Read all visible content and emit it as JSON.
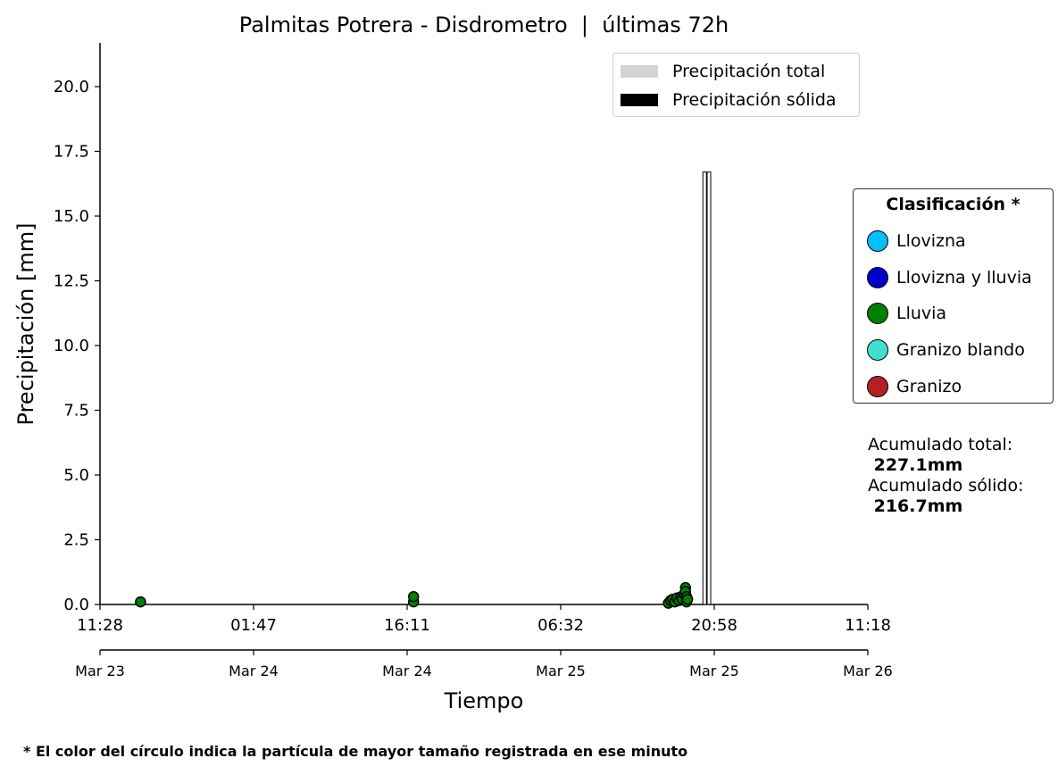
{
  "chart_data": {
    "type": "bar",
    "title": "Palmitas Potrera - Disdrometro  |  últimas 72h",
    "xlabel": "Tiempo",
    "ylabel": "Precipitación [mm]",
    "ylim": [
      0,
      21.7
    ],
    "xlim_hours": [
      0,
      72
    ],
    "grid": false,
    "yticks": [
      "0.0",
      "2.5",
      "5.0",
      "7.5",
      "10.0",
      "12.5",
      "15.0",
      "17.5",
      "20.0"
    ],
    "xticks_time": [
      "11:28",
      "01:47",
      "16:11",
      "06:32",
      "20:58",
      "11:18"
    ],
    "xticks_date": [
      "Mar 23",
      "Mar 24",
      "Mar 24",
      "Mar 25",
      "Mar 25",
      "Mar 26"
    ],
    "legend_placement": "top-right",
    "series": [
      {
        "name": "Precipitación total",
        "color": "#d3d3d3",
        "bars": [
          {
            "t_hours": 56.7,
            "value": 16.7
          },
          {
            "t_hours": 57.1,
            "value": 16.7
          }
        ]
      },
      {
        "name": "Precipitación sólida",
        "color": "#000000",
        "bars": [
          {
            "t_hours": 56.7,
            "value": 16.7
          },
          {
            "t_hours": 57.1,
            "value": 16.7
          }
        ]
      }
    ],
    "points": [
      {
        "t_hours": 3.8,
        "value": 0.1,
        "class": "Lluvia"
      },
      {
        "t_hours": 29.4,
        "value": 0.1,
        "class": "Lluvia"
      },
      {
        "t_hours": 29.4,
        "value": 0.3,
        "class": "Lluvia"
      },
      {
        "t_hours": 53.3,
        "value": 0.05,
        "class": "Lluvia"
      },
      {
        "t_hours": 53.5,
        "value": 0.15,
        "class": "Lluvia"
      },
      {
        "t_hours": 53.7,
        "value": 0.2,
        "class": "Lluvia"
      },
      {
        "t_hours": 53.9,
        "value": 0.1,
        "class": "Lluvia"
      },
      {
        "t_hours": 54.1,
        "value": 0.25,
        "class": "Lluvia"
      },
      {
        "t_hours": 54.3,
        "value": 0.15,
        "class": "Lluvia"
      },
      {
        "t_hours": 54.5,
        "value": 0.3,
        "class": "Lluvia"
      },
      {
        "t_hours": 54.6,
        "value": 0.2,
        "class": "Lluvia"
      },
      {
        "t_hours": 54.8,
        "value": 0.4,
        "class": "Lluvia"
      },
      {
        "t_hours": 54.9,
        "value": 0.65,
        "class": "Lluvia"
      },
      {
        "t_hours": 54.9,
        "value": 0.5,
        "class": "Lluvia"
      },
      {
        "t_hours": 55.0,
        "value": 0.3,
        "class": "Lluvia"
      },
      {
        "t_hours": 55.0,
        "value": 0.1,
        "class": "Lluvia"
      },
      {
        "t_hours": 55.1,
        "value": 0.2,
        "class": "Lluvia"
      }
    ],
    "classification": {
      "title": "Clasificación *",
      "items": [
        {
          "label": "Llovizna",
          "color": "#00bfff"
        },
        {
          "label": "Llovizna y lluvia",
          "color": "#0000cd"
        },
        {
          "label": "Lluvia",
          "color": "#008000"
        },
        {
          "label": "Granizo blando",
          "color": "#40e0d0"
        },
        {
          "label": "Granizo",
          "color": "#b22222"
        }
      ]
    },
    "accumulated": {
      "total_label": "Acumulado total:",
      "total_value": " 227.1mm",
      "solid_label": "Acumulado sólido:",
      "solid_value": " 216.7mm"
    },
    "footnote": "* El color del círculo indica la partícula de mayor tamaño registrada en ese minuto"
  }
}
